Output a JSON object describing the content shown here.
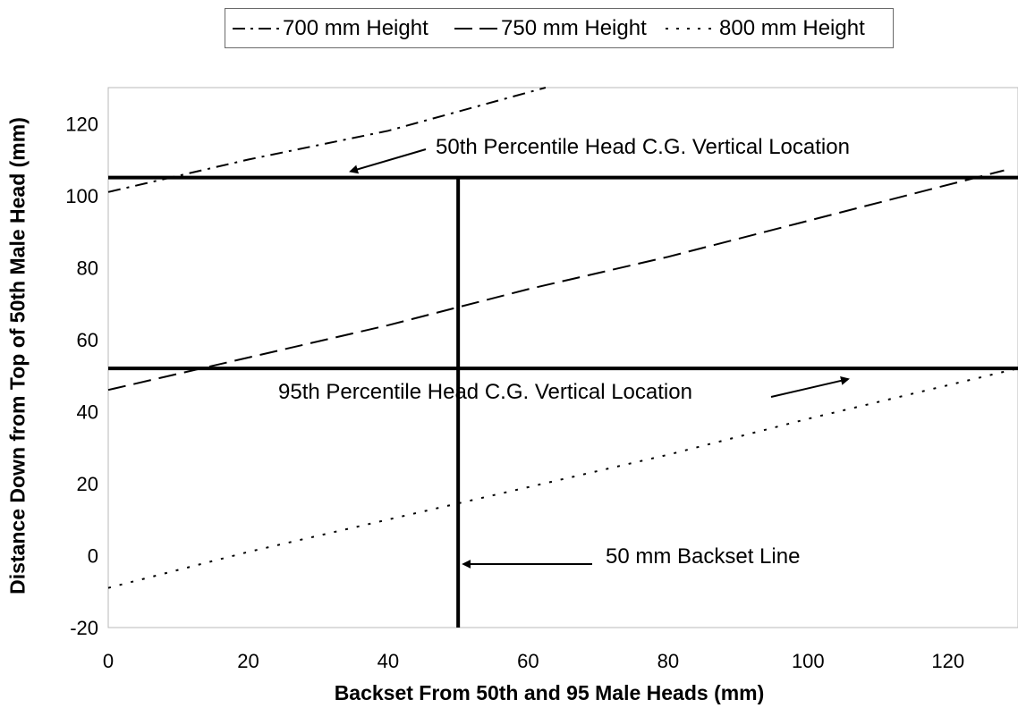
{
  "chart_data": {
    "type": "line",
    "xlabel": "Backset From 50th and 95 Male Heads (mm)",
    "ylabel": "Distance Down from Top of 50th Male Head (mm)",
    "xlim": [
      0,
      130
    ],
    "ylim": [
      -20,
      130
    ],
    "xticks": [
      "0",
      "20",
      "40",
      "60",
      "80",
      "100",
      "120"
    ],
    "yticks": [
      "-20",
      "0",
      "20",
      "40",
      "60",
      "80",
      "100",
      "120"
    ],
    "grid": false,
    "legend_position": "top",
    "series": [
      {
        "name": "700 mm Height",
        "style": "dash-dot",
        "x": [
          0,
          20,
          40,
          62.5
        ],
        "y": [
          101,
          110,
          118,
          130
        ]
      },
      {
        "name": "750 mm Height",
        "style": "dashed",
        "x": [
          0,
          20,
          40,
          60,
          80,
          100,
          128
        ],
        "y": [
          46,
          55,
          64,
          74,
          83,
          93,
          107
        ]
      },
      {
        "name": "800 mm Height",
        "style": "dotted",
        "x": [
          0,
          20,
          40,
          60,
          80,
          100,
          130
        ],
        "y": [
          -9,
          1,
          10,
          19,
          28,
          38,
          52
        ]
      }
    ],
    "reference_lines": [
      {
        "orientation": "horizontal",
        "value": 105
      },
      {
        "orientation": "horizontal",
        "value": 52
      },
      {
        "orientation": "vertical",
        "value": 50
      }
    ],
    "annotations": [
      {
        "text": "50th Percentile Head C.G. Vertical Location"
      },
      {
        "text": "95th Percentile Head C.G. Vertical Location"
      },
      {
        "text": "50 mm Backset Line"
      }
    ]
  }
}
